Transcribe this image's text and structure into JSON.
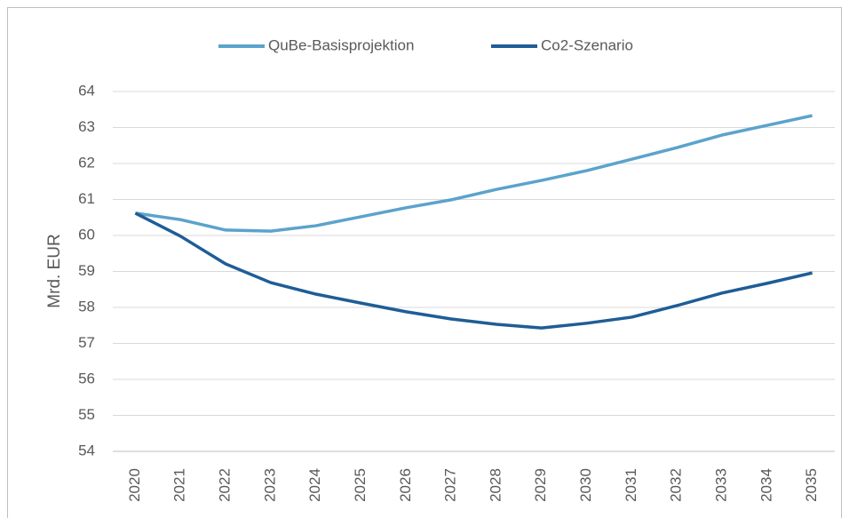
{
  "chart_data": {
    "type": "line",
    "y_label": "Mrd. EUR",
    "categories": [
      "2020",
      "2021",
      "2022",
      "2023",
      "2024",
      "2025",
      "2026",
      "2027",
      "2028",
      "2029",
      "2030",
      "2031",
      "2032",
      "2033",
      "2034",
      "2035"
    ],
    "series": [
      {
        "name": "QuBe-Basisprojektion",
        "color": "#5ba3cc",
        "values": [
          60.62,
          60.44,
          60.15,
          60.12,
          60.27,
          60.52,
          60.77,
          60.99,
          61.28,
          61.53,
          61.8,
          62.12,
          62.44,
          62.79,
          63.06,
          63.33
        ]
      },
      {
        "name": "Co2-Szenario",
        "color": "#1f5d96",
        "values": [
          60.62,
          59.98,
          59.21,
          58.69,
          58.37,
          58.12,
          57.88,
          57.68,
          57.53,
          57.43,
          57.56,
          57.73,
          58.05,
          58.4,
          58.67,
          58.96
        ]
      }
    ],
    "ylim": [
      54,
      64
    ],
    "yticks": [
      54,
      55,
      56,
      57,
      58,
      59,
      60,
      61,
      62,
      63,
      64
    ],
    "grid": true,
    "legend": "top"
  }
}
